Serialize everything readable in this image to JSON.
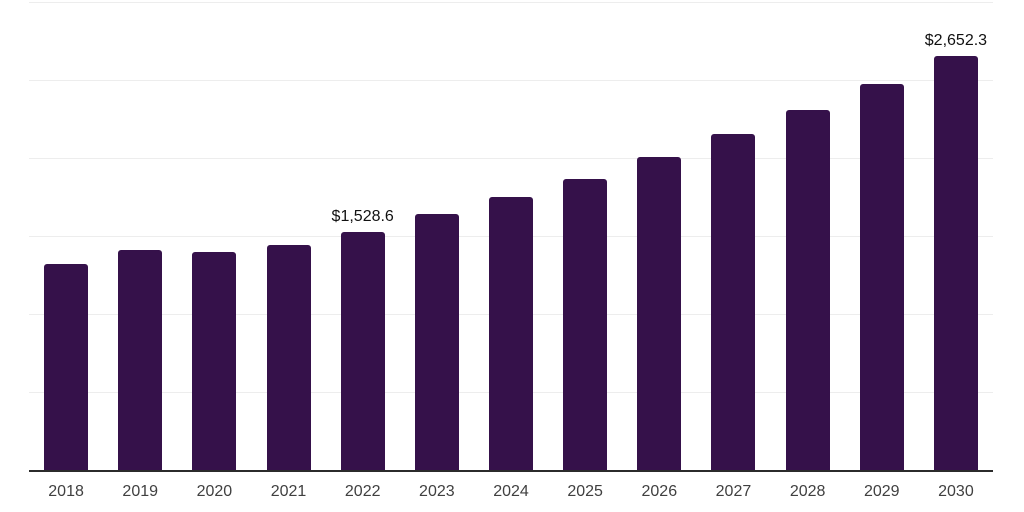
{
  "chart": {
    "background": "#ffffff",
    "colors": {
      "bar": "#35114A",
      "grid": "#ededed",
      "axis": "#2b2b2b",
      "data_label": "#111111",
      "tick_label": "#404040"
    }
  },
  "chart_data": {
    "type": "bar",
    "title": "",
    "xlabel": "",
    "ylabel": "",
    "categories": [
      "2018",
      "2019",
      "2020",
      "2021",
      "2022",
      "2023",
      "2024",
      "2025",
      "2026",
      "2027",
      "2028",
      "2029",
      "2030"
    ],
    "values": [
      1323,
      1413,
      1396,
      1441,
      1528.6,
      1638,
      1753,
      1863,
      2004,
      2152,
      2306,
      2473,
      2652.3
    ],
    "data_labels": [
      {
        "index": 4,
        "text": "$1,528.6"
      },
      {
        "index": 12,
        "text": "$2,652.3"
      }
    ],
    "ylim": [
      0,
      3000
    ],
    "gridline_step": 500,
    "grid": "horizontal",
    "legend": "none"
  }
}
